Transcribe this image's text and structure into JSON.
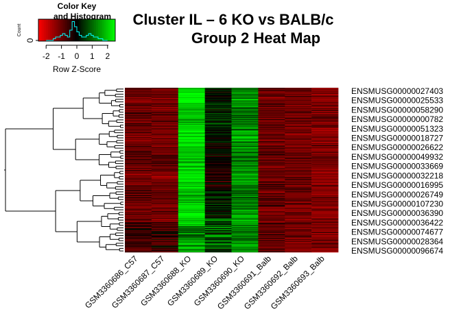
{
  "chart_data": {
    "type": "heatmap",
    "title_line1": "Cluster IL – 6 KO vs BALB/c",
    "title_line2": "Group 2 Heat Map",
    "columns": [
      "GSM3360686_C57",
      "GSM3360687_C57",
      "GSM3360688_KO",
      "GSM3360689_KO",
      "GSM3360690_KO",
      "GSM3360691_Balb",
      "GSM3360692_Balb",
      "GSM3360693_Balb"
    ],
    "column_mean_zscore": [
      -1.0,
      -1.1,
      2.0,
      0.1,
      1.3,
      -1.0,
      -1.1,
      -1.2
    ],
    "row_labels": [
      "ENSMUSG00000027403",
      "ENSMUSG00000025533",
      "ENSMUSG00000058290",
      "ENSMUSG00000000782",
      "ENSMUSG00000051323",
      "ENSMUSG00000018727",
      "ENSMUSG00000026622",
      "ENSMUSG00000049932",
      "ENSMUSG00000033669",
      "ENSMUSG00000032218",
      "ENSMUSG00000016995",
      "ENSMUSG00000026749",
      "ENSMUSG00000107230",
      "ENSMUSG00000036390",
      "ENSMUSG00000036422",
      "ENSMUSG00000074677",
      "ENSMUSG00000028364",
      "ENSMUSG00000096674"
    ],
    "color_scale": {
      "low": "#ff0000",
      "mid": "#000000",
      "high": "#00ff00",
      "range": [
        -2.5,
        2.5
      ]
    },
    "color_key": {
      "title_line1": "Color Key",
      "title_line2": "and Histogram",
      "xlabel": "Row Z-Score",
      "ylabel": "Count",
      "xticks": [
        "-2",
        "-1",
        "0",
        "1",
        "2"
      ],
      "xtick_values": [
        -2,
        -1,
        0,
        1,
        2
      ],
      "yticks": [
        "0"
      ],
      "histogram_color": "#00ffff"
    }
  }
}
